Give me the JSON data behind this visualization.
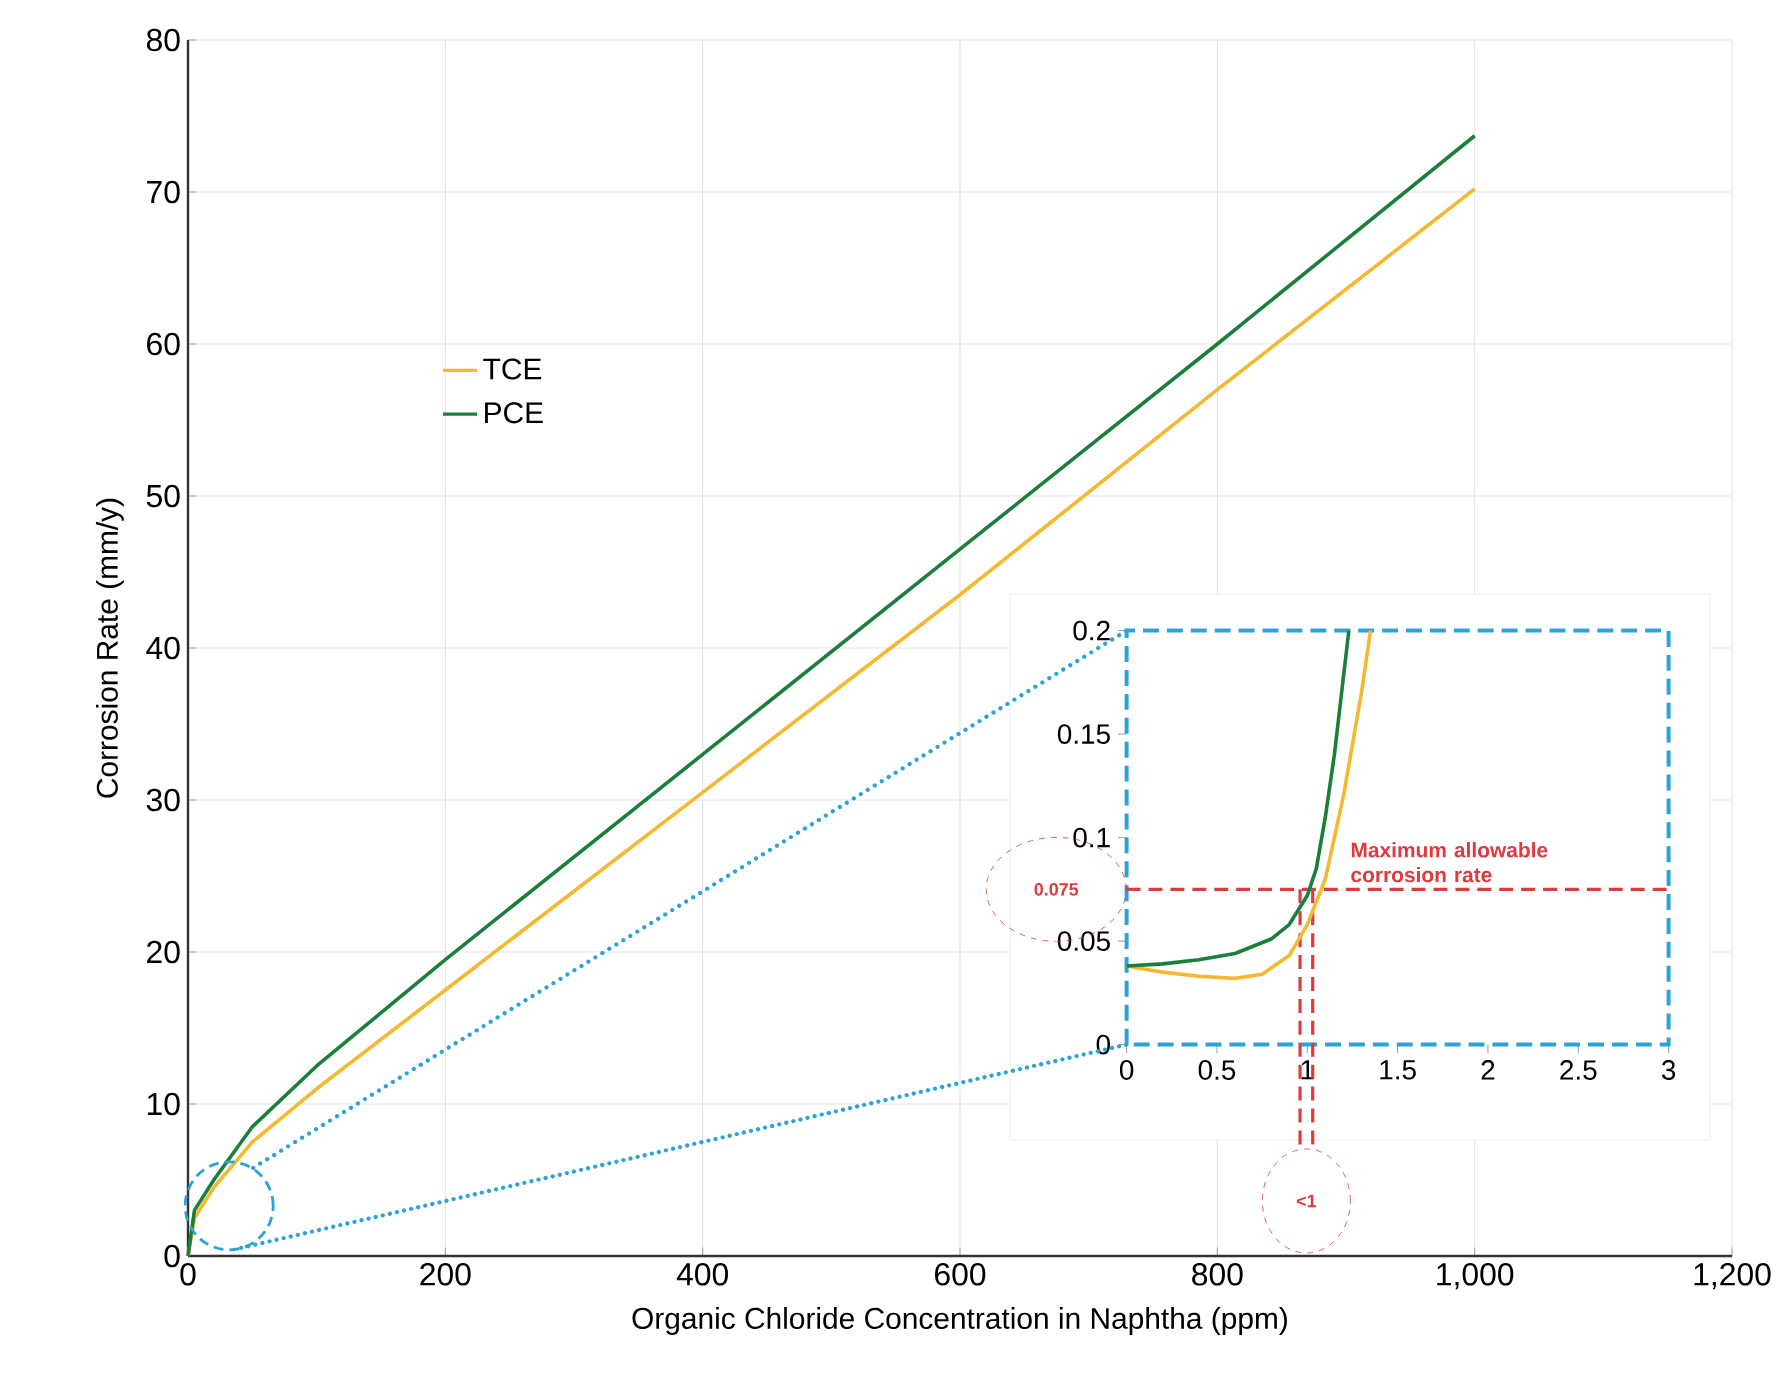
{
  "chart_data": [
    {
      "type": "line",
      "xlabel": "Organic Chloride Concentration in Naphtha (ppm)",
      "ylabel": "Corrosion Rate (mm/y)",
      "xlim": [
        0,
        1200
      ],
      "ylim": [
        0,
        80
      ],
      "xticks": [
        0,
        200,
        400,
        600,
        800,
        {
          "value": 1000,
          "label": "1,000"
        },
        {
          "value": 1200,
          "label": "1,200"
        }
      ],
      "yticks": [
        0,
        10,
        20,
        30,
        40,
        50,
        60,
        70,
        80
      ],
      "grid": true,
      "legend": "top left",
      "marker": "none",
      "line_style": "solid",
      "series": [
        {
          "name": "TCE",
          "color": "#f5b82e",
          "x": [
            0,
            5,
            20,
            50,
            100,
            200,
            400,
            600,
            800,
            1000
          ],
          "values": [
            0,
            2.5,
            4.5,
            7.5,
            11,
            17.5,
            30.5,
            43.5,
            57,
            70.2
          ]
        },
        {
          "name": "PCE",
          "color": "#1a7f3c",
          "x": [
            0,
            5,
            20,
            50,
            100,
            200,
            400,
            600,
            800,
            1000
          ],
          "values": [
            0,
            3,
            5,
            8.5,
            12.5,
            19.5,
            33,
            46.5,
            60,
            73.7
          ]
        }
      ]
    },
    {
      "type": "line",
      "xlim": [
        0,
        3
      ],
      "ylim": [
        0,
        0.2
      ],
      "xticks": [
        0,
        0.5,
        1,
        1.5,
        2,
        2.5,
        3
      ],
      "yticks": [
        0,
        0.05,
        0.1,
        0.15,
        0.2
      ],
      "marker": "none",
      "line_style": "solid",
      "series": [
        {
          "color": "#f5b82e",
          "x": [
            0,
            0.2,
            0.4,
            0.6,
            0.75,
            0.9,
            1.0,
            1.1,
            1.2,
            1.3,
            1.35
          ],
          "values": [
            0.038,
            0.035,
            0.033,
            0.032,
            0.034,
            0.043,
            0.058,
            0.08,
            0.12,
            0.17,
            0.2
          ]
        },
        {
          "color": "#1a7f3c",
          "x": [
            0,
            0.2,
            0.4,
            0.6,
            0.8,
            0.9,
            1.0,
            1.05,
            1.1,
            1.15,
            1.23
          ],
          "values": [
            0.038,
            0.039,
            0.041,
            0.044,
            0.051,
            0.058,
            0.072,
            0.085,
            0.11,
            0.14,
            0.2
          ]
        }
      ],
      "ref_lines": [
        {
          "axis": "y",
          "value": 0.075,
          "label": "Maximum allowable corrosion rate",
          "color": "#e0393e",
          "line_style": "dashed"
        },
        {
          "axis": "x",
          "value": 0.96,
          "color": "#e0393e",
          "line_style": "dashed"
        },
        {
          "axis": "x",
          "value": 1.03,
          "color": "#e0393e",
          "line_style": "dashed"
        }
      ],
      "annotations": [
        "0.075",
        "<1"
      ]
    }
  ]
}
